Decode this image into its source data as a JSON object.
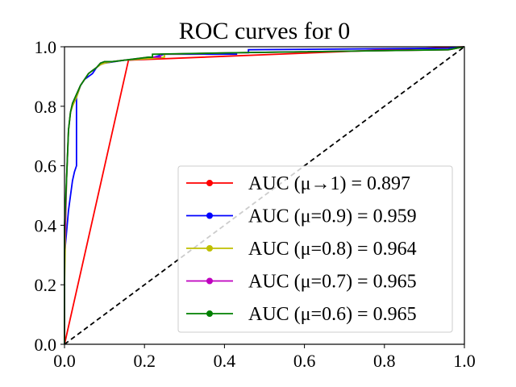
{
  "chart_data": {
    "type": "line",
    "title": "ROC curves for 0",
    "xlabel": "",
    "ylabel": "",
    "xlim": [
      0.0,
      1.0
    ],
    "ylim": [
      0.0,
      1.0
    ],
    "xticks": [
      "0.0",
      "0.2",
      "0.4",
      "0.6",
      "0.8",
      "1.0"
    ],
    "yticks": [
      "0.0",
      "0.2",
      "0.4",
      "0.6",
      "0.8",
      "1.0"
    ],
    "grid": false,
    "legend_position": "lower-right",
    "series": [
      {
        "name": "AUC (μ→1) = 0.897",
        "color": "#ff0000",
        "x": [
          0.0,
          0.16,
          1.0
        ],
        "y": [
          0.0,
          0.955,
          1.0
        ]
      },
      {
        "name": "AUC (μ=0.9) = 0.959",
        "color": "#0000ff",
        "x": [
          0.0,
          0.0,
          0.01,
          0.02,
          0.025,
          0.03,
          0.03,
          0.04,
          0.05,
          0.07,
          0.08,
          0.09,
          0.1,
          0.15,
          0.21,
          0.25,
          0.43,
          0.43,
          0.46,
          0.46,
          0.96,
          1.0
        ],
        "y": [
          0.0,
          0.3,
          0.45,
          0.55,
          0.58,
          0.6,
          0.83,
          0.87,
          0.89,
          0.91,
          0.93,
          0.94,
          0.945,
          0.955,
          0.96,
          0.975,
          0.975,
          0.98,
          0.98,
          0.99,
          0.995,
          1.0
        ]
      },
      {
        "name": "AUC (μ=0.8) = 0.964",
        "color": "#bfbf00",
        "x": [
          0.0,
          0.0,
          0.005,
          0.01,
          0.015,
          0.02,
          0.03,
          0.04,
          0.05,
          0.06,
          0.07,
          0.08,
          0.09,
          0.1,
          0.12,
          0.15,
          0.21,
          0.25,
          0.25,
          0.43,
          0.96,
          1.0
        ],
        "y": [
          0.0,
          0.2,
          0.55,
          0.72,
          0.78,
          0.8,
          0.83,
          0.87,
          0.89,
          0.91,
          0.92,
          0.93,
          0.94,
          0.945,
          0.95,
          0.955,
          0.96,
          0.965,
          0.975,
          0.98,
          0.99,
          1.0
        ]
      },
      {
        "name": "AUC (μ=0.7) = 0.965",
        "color": "#bf00bf",
        "x": [
          0.0,
          0.0,
          0.005,
          0.01,
          0.015,
          0.02,
          0.03,
          0.04,
          0.05,
          0.06,
          0.07,
          0.08,
          0.09,
          0.1,
          0.12,
          0.15,
          0.21,
          0.24,
          0.24,
          0.43,
          0.96,
          1.0
        ],
        "y": [
          0.0,
          0.3,
          0.55,
          0.72,
          0.78,
          0.81,
          0.84,
          0.87,
          0.89,
          0.91,
          0.92,
          0.93,
          0.945,
          0.95,
          0.95,
          0.955,
          0.965,
          0.965,
          0.975,
          0.98,
          0.99,
          1.0
        ]
      },
      {
        "name": "AUC (μ=0.6) = 0.965",
        "color": "#008000",
        "x": [
          0.0,
          0.0,
          0.005,
          0.01,
          0.015,
          0.02,
          0.03,
          0.04,
          0.05,
          0.06,
          0.07,
          0.08,
          0.09,
          0.1,
          0.12,
          0.15,
          0.21,
          0.22,
          0.22,
          0.43,
          0.96,
          1.0
        ],
        "y": [
          0.0,
          0.4,
          0.55,
          0.72,
          0.78,
          0.81,
          0.84,
          0.87,
          0.89,
          0.91,
          0.92,
          0.93,
          0.945,
          0.95,
          0.95,
          0.955,
          0.965,
          0.965,
          0.975,
          0.98,
          0.99,
          1.0
        ]
      }
    ],
    "reference_line": {
      "style": "dashed",
      "color": "#000000",
      "x": [
        0.0,
        1.0
      ],
      "y": [
        0.0,
        1.0
      ]
    }
  }
}
